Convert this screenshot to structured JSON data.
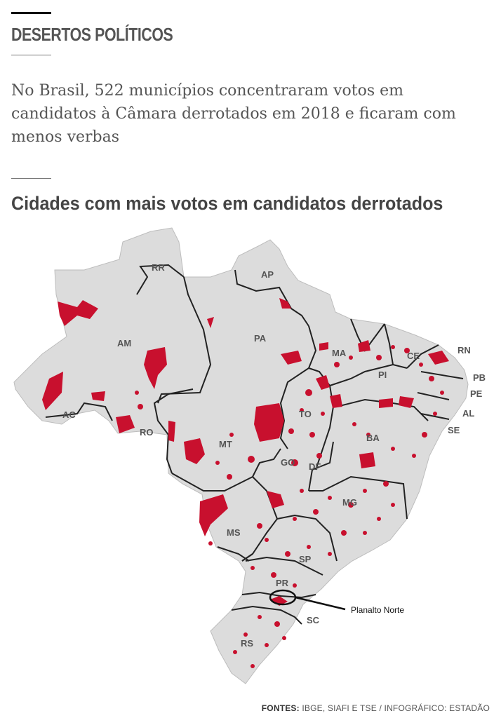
{
  "kicker": "DESERTOS POLÍTICOS",
  "subtitle": "No Brasil, 522 municípios concentraram votos em candidatos à Câmara derrotados em 2018 e ficaram com menos verbas",
  "heading": "Cidades com mais votos em candidatos derrotados",
  "colors": {
    "land": "#dcdcdc",
    "highlight": "#c8102e",
    "border": "#222222"
  },
  "states": {
    "RR": "RR",
    "AP": "AP",
    "AM": "AM",
    "PA": "PA",
    "MA": "MA",
    "CE": "CE",
    "RN": "RN",
    "PB": "PB",
    "PE": "PE",
    "PI": "PI",
    "AL": "AL",
    "SE": "SE",
    "AC": "AC",
    "RO": "RO",
    "TO": "TO",
    "BA": "BA",
    "MT": "MT",
    "GO": "GO",
    "DF": "DF",
    "MG": "MG",
    "MS": "MS",
    "SP": "SP",
    "PR": "PR",
    "SC": "SC",
    "RS": "RS"
  },
  "callout": "Planalto Norte",
  "footer": {
    "label": "FONTES:",
    "text": "IBGE, SIAFI E TSE / INFOGRÁFICO: ESTADÃO"
  }
}
